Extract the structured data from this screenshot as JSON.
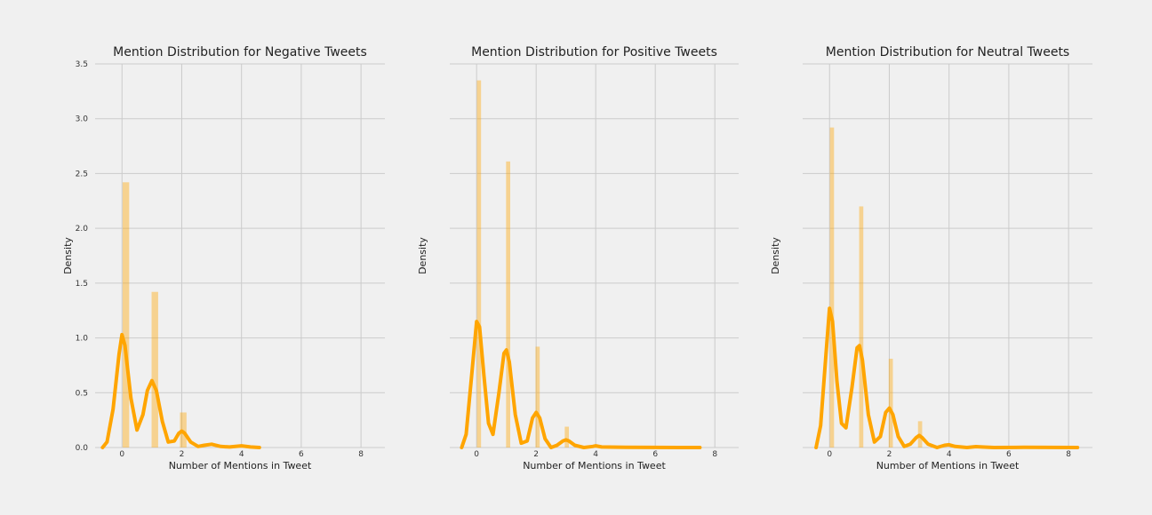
{
  "chart_data": [
    {
      "type": "histogram-kde",
      "title": "Mention Distribution for Negative Tweets",
      "xlabel": "Number of Mentions in Tweet",
      "ylabel": "Density",
      "xlim": [
        -0.9,
        8.8
      ],
      "ylim": [
        0,
        3.5
      ],
      "xticks": [
        0,
        2,
        4,
        6,
        8
      ],
      "yticks": [
        0.0,
        0.5,
        1.0,
        1.5,
        2.0,
        2.5,
        3.0,
        3.5
      ],
      "show_yticklabels": true,
      "grid": true,
      "bars": [
        {
          "x": 0.13,
          "width": 0.22,
          "density": 2.42
        },
        {
          "x": 1.1,
          "width": 0.22,
          "density": 1.42
        },
        {
          "x": 2.05,
          "width": 0.22,
          "density": 0.32
        }
      ],
      "kde": [
        [
          -0.65,
          0.0
        ],
        [
          -0.5,
          0.05
        ],
        [
          -0.3,
          0.35
        ],
        [
          -0.1,
          0.85
        ],
        [
          0.0,
          1.03
        ],
        [
          0.1,
          0.93
        ],
        [
          0.3,
          0.45
        ],
        [
          0.5,
          0.16
        ],
        [
          0.7,
          0.3
        ],
        [
          0.85,
          0.52
        ],
        [
          1.0,
          0.61
        ],
        [
          1.15,
          0.52
        ],
        [
          1.35,
          0.24
        ],
        [
          1.55,
          0.05
        ],
        [
          1.75,
          0.06
        ],
        [
          1.9,
          0.13
        ],
        [
          2.0,
          0.15
        ],
        [
          2.1,
          0.13
        ],
        [
          2.3,
          0.05
        ],
        [
          2.55,
          0.01
        ],
        [
          2.75,
          0.02
        ],
        [
          3.0,
          0.03
        ],
        [
          3.3,
          0.01
        ],
        [
          3.6,
          0.005
        ],
        [
          4.0,
          0.015
        ],
        [
          4.3,
          0.005
        ],
        [
          4.6,
          0.0
        ]
      ],
      "color": "#ffa500"
    },
    {
      "type": "histogram-kde",
      "title": "Mention Distribution for Positive Tweets",
      "xlabel": "Number of Mentions in Tweet",
      "ylabel": "Density",
      "xlim": [
        -0.9,
        8.8
      ],
      "ylim": [
        0,
        3.5
      ],
      "xticks": [
        0,
        2,
        4,
        6,
        8
      ],
      "yticks": [
        0.0,
        0.5,
        1.0,
        1.5,
        2.0,
        2.5,
        3.0,
        3.5
      ],
      "show_yticklabels": false,
      "grid": true,
      "bars": [
        {
          "x": 0.08,
          "width": 0.14,
          "density": 3.35
        },
        {
          "x": 1.06,
          "width": 0.14,
          "density": 2.61
        },
        {
          "x": 2.05,
          "width": 0.14,
          "density": 0.92
        },
        {
          "x": 3.03,
          "width": 0.14,
          "density": 0.19
        }
      ],
      "kde": [
        [
          -0.5,
          0.0
        ],
        [
          -0.35,
          0.12
        ],
        [
          -0.15,
          0.7
        ],
        [
          0.0,
          1.15
        ],
        [
          0.1,
          1.1
        ],
        [
          0.25,
          0.65
        ],
        [
          0.4,
          0.22
        ],
        [
          0.55,
          0.12
        ],
        [
          0.75,
          0.5
        ],
        [
          0.92,
          0.86
        ],
        [
          1.0,
          0.89
        ],
        [
          1.1,
          0.78
        ],
        [
          1.3,
          0.3
        ],
        [
          1.5,
          0.04
        ],
        [
          1.7,
          0.06
        ],
        [
          1.88,
          0.27
        ],
        [
          2.0,
          0.32
        ],
        [
          2.12,
          0.27
        ],
        [
          2.3,
          0.08
        ],
        [
          2.5,
          0.0
        ],
        [
          2.7,
          0.02
        ],
        [
          2.9,
          0.06
        ],
        [
          3.0,
          0.07
        ],
        [
          3.1,
          0.06
        ],
        [
          3.3,
          0.02
        ],
        [
          3.6,
          0.0
        ],
        [
          3.9,
          0.01
        ],
        [
          4.0,
          0.015
        ],
        [
          4.2,
          0.005
        ],
        [
          5.0,
          0.002
        ],
        [
          6.0,
          0.001
        ],
        [
          7.5,
          0.0
        ]
      ],
      "color": "#ffa500"
    },
    {
      "type": "histogram-kde",
      "title": "Mention Distribution for Neutral Tweets",
      "xlabel": "Number of Mentions in Tweet",
      "ylabel": "Density",
      "xlim": [
        -0.9,
        8.8
      ],
      "ylim": [
        0,
        3.5
      ],
      "xticks": [
        0,
        2,
        4,
        6,
        8
      ],
      "yticks": [
        0.0,
        0.5,
        1.0,
        1.5,
        2.0,
        2.5,
        3.0,
        3.5
      ],
      "show_yticklabels": false,
      "grid": true,
      "bars": [
        {
          "x": 0.08,
          "width": 0.14,
          "density": 2.92
        },
        {
          "x": 1.06,
          "width": 0.14,
          "density": 2.2
        },
        {
          "x": 2.05,
          "width": 0.14,
          "density": 0.81
        },
        {
          "x": 3.03,
          "width": 0.14,
          "density": 0.24
        }
      ],
      "kde": [
        [
          -0.45,
          0.0
        ],
        [
          -0.3,
          0.2
        ],
        [
          -0.12,
          0.85
        ],
        [
          0.0,
          1.27
        ],
        [
          0.1,
          1.15
        ],
        [
          0.25,
          0.6
        ],
        [
          0.4,
          0.22
        ],
        [
          0.55,
          0.18
        ],
        [
          0.75,
          0.55
        ],
        [
          0.92,
          0.91
        ],
        [
          1.0,
          0.93
        ],
        [
          1.1,
          0.8
        ],
        [
          1.3,
          0.3
        ],
        [
          1.5,
          0.05
        ],
        [
          1.7,
          0.1
        ],
        [
          1.88,
          0.32
        ],
        [
          2.0,
          0.36
        ],
        [
          2.12,
          0.3
        ],
        [
          2.3,
          0.1
        ],
        [
          2.5,
          0.01
        ],
        [
          2.7,
          0.03
        ],
        [
          2.9,
          0.09
        ],
        [
          3.0,
          0.11
        ],
        [
          3.1,
          0.09
        ],
        [
          3.3,
          0.03
        ],
        [
          3.6,
          0.0
        ],
        [
          3.85,
          0.02
        ],
        [
          4.0,
          0.025
        ],
        [
          4.2,
          0.01
        ],
        [
          4.6,
          0.0
        ],
        [
          4.9,
          0.008
        ],
        [
          5.1,
          0.005
        ],
        [
          5.5,
          0.0
        ],
        [
          6.5,
          0.002
        ],
        [
          8.3,
          0.0
        ]
      ],
      "color": "#ffa500"
    }
  ]
}
